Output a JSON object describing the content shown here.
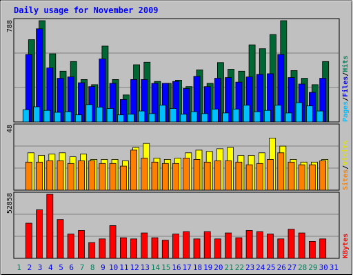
{
  "chart_data": {
    "type": "bar",
    "title": "Daily usage for November 2009",
    "categories": [
      "1",
      "2",
      "3",
      "4",
      "5",
      "6",
      "7",
      "8",
      "9",
      "10",
      "11",
      "12",
      "13",
      "14",
      "15",
      "16",
      "17",
      "18",
      "19",
      "20",
      "21",
      "22",
      "23",
      "24",
      "25",
      "26",
      "27",
      "28",
      "29",
      "30",
      "31"
    ],
    "weekend_days": [
      "1",
      "7",
      "8",
      "14",
      "15",
      "21",
      "22",
      "28",
      "29"
    ],
    "panels": [
      {
        "ylim": [
          0,
          788
        ],
        "ymax_label": "788",
        "series": [
          {
            "name": "Hits",
            "color": "#006633",
            "values": [
              0,
              640,
              788,
              530,
              395,
              470,
              330,
              290,
              590,
              330,
              210,
              445,
              465,
              315,
              300,
              325,
              275,
              405,
              300,
              462,
              410,
              395,
              600,
              570,
              680,
              788,
              400,
              340,
              290,
              470,
              0
            ]
          },
          {
            "name": "Files",
            "color": "#0000ff",
            "values": [
              0,
              525,
              725,
              420,
              340,
              350,
              305,
              275,
              490,
              300,
              175,
              330,
              330,
              300,
              300,
              315,
              260,
              355,
              275,
              340,
              345,
              310,
              350,
              370,
              375,
              525,
              345,
              295,
              230,
              340,
              0
            ]
          },
          {
            "name": "Pages",
            "color": "#00c0ff",
            "values": [
              0,
              95,
              118,
              90,
              75,
              80,
              55,
              135,
              115,
              105,
              55,
              60,
              85,
              65,
              130,
              105,
              60,
              80,
              65,
              100,
              70,
              100,
              130,
              80,
              90,
              130,
              70,
              150,
              125,
              85,
              0
            ]
          }
        ]
      },
      {
        "ylim": [
          0,
          48
        ],
        "ymax_label": "48",
        "series": [
          {
            "name": "Visits",
            "color": "#ffff00",
            "values": [
              0,
              28,
              26,
              27,
              28,
              25,
              27,
              23,
              23,
              23,
              22,
              32,
              35,
              24,
              23,
              24,
              28,
              30,
              29,
              31,
              32,
              26,
              26,
              28,
              39,
              33,
              23,
              21,
              21,
              23,
              0
            ]
          },
          {
            "name": "Sites",
            "color": "#ff8000",
            "values": [
              0,
              21,
              21,
              22,
              22,
              20,
              22,
              22,
              20,
              20,
              18,
              30,
              24,
              21,
              20,
              20,
              24,
              23,
              21,
              22,
              22,
              21,
              19,
              20,
              23,
              28,
              21,
              19,
              19,
              22,
              0
            ]
          }
        ]
      },
      {
        "ylim": [
          0,
          52858
        ],
        "ymax_label": "52858",
        "series": [
          {
            "name": "KBytes",
            "color": "#ff0000",
            "values": [
              0,
              29000,
              40000,
              52858,
              32000,
              20000,
              23000,
              13000,
              16000,
              27000,
              17000,
              16000,
              21000,
              17000,
              15000,
              20000,
              22000,
              16000,
              22000,
              16000,
              21000,
              17000,
              23000,
              22000,
              20000,
              16000,
              24000,
              21000,
              14000,
              16000,
              0
            ]
          }
        ]
      }
    ],
    "legend": {
      "panel1": {
        "pages": "Pages",
        "sep1": "/",
        "files": "Files",
        "sep2": "/",
        "hits": "Hits"
      },
      "panel2": {
        "sites": "Sites",
        "sep": "/",
        "visits": "Visits"
      },
      "panel3": {
        "kbytes": "KBytes"
      }
    },
    "colors": {
      "background": "#c0c0c0",
      "frame": "#000000",
      "title": "#0000ff",
      "weekday_label": "#0000ff",
      "weekend_label": "#00805c",
      "outline_dark": "#000000"
    }
  }
}
